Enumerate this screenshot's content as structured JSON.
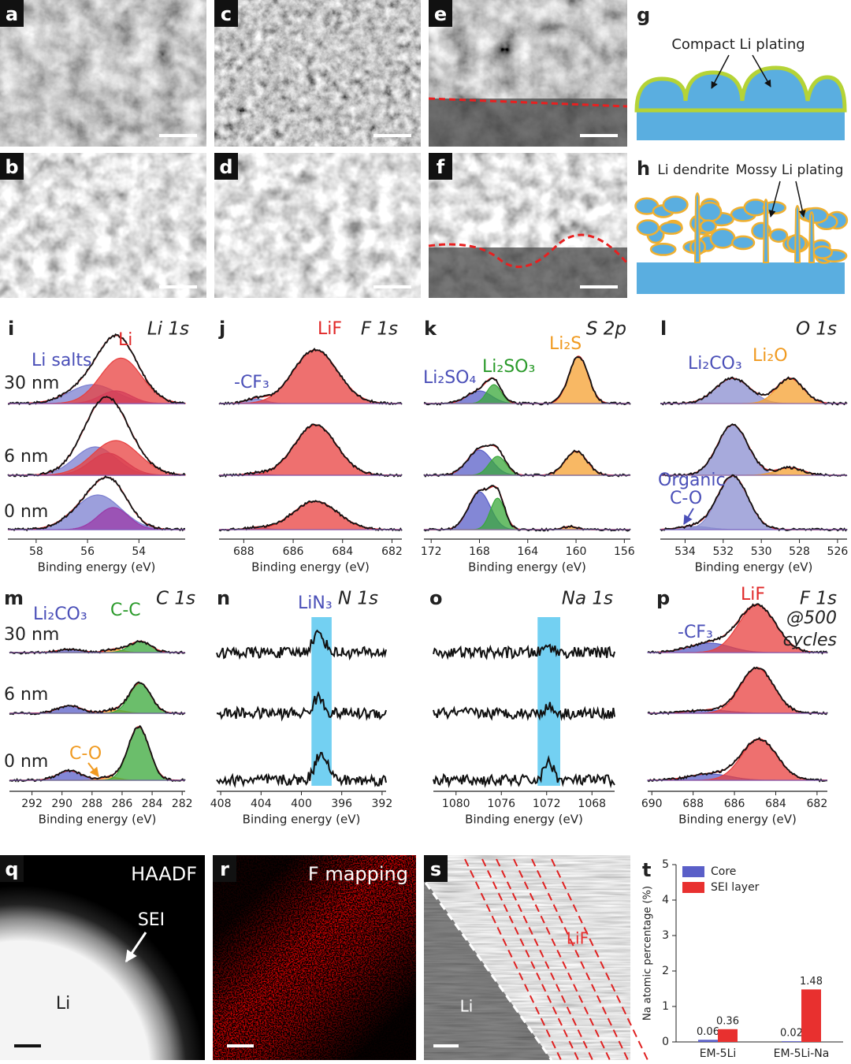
{
  "sem": [
    {
      "letter": "a"
    },
    {
      "letter": "b"
    },
    {
      "letter": "c"
    },
    {
      "letter": "d"
    },
    {
      "letter": "e"
    },
    {
      "letter": "f"
    }
  ],
  "schematics": [
    {
      "letter": "g",
      "labels": [
        "Compact Li plating"
      ]
    },
    {
      "letter": "h",
      "labels": [
        "Li dendrite",
        "Mossy Li plating"
      ]
    }
  ],
  "xps": [
    {
      "letter": "i",
      "title": "Li 1s",
      "xlim": [
        59.1,
        52.2
      ],
      "xticks": [
        58,
        56,
        54
      ],
      "xlabel": "Binding energy (eV)",
      "depths": [
        "30 nm",
        "6 nm",
        "0 nm"
      ],
      "labels": [
        {
          "text": "Li salts",
          "color": "#4a4fb8"
        },
        {
          "text": "Li",
          "color": "#e02828"
        }
      ],
      "rows": [
        [
          [
            55.8,
            0.3,
            0.9,
            "#7b7fd0"
          ],
          [
            54.9,
            0.2,
            0.6,
            "#9b3aa8"
          ],
          [
            54.7,
            0.72,
            0.8,
            "#e8403f"
          ]
        ],
        [
          [
            55.7,
            0.45,
            0.8,
            "#7b7fd0"
          ],
          [
            55.2,
            0.35,
            0.7,
            "#b03a80"
          ],
          [
            54.9,
            0.55,
            0.9,
            "#e8403f"
          ]
        ],
        [
          [
            55.6,
            0.55,
            0.9,
            "#7b7fd0"
          ],
          [
            55.0,
            0.35,
            0.6,
            "#9b3aa8"
          ]
        ]
      ]
    },
    {
      "letter": "j",
      "title": "F 1s",
      "xlim": [
        689,
        681.6
      ],
      "xticks": [
        688,
        686,
        684,
        682
      ],
      "xlabel": "Binding energy (eV)",
      "labels": [
        {
          "text": "LiF",
          "color": "#e02828"
        },
        {
          "text": "-CF₃",
          "color": "#4a4fb8"
        }
      ],
      "rows": [
        [
          [
            687.5,
            0.07,
            0.4,
            "#7b7fd0"
          ],
          [
            685.1,
            0.85,
            0.9,
            "#e8403f"
          ]
        ],
        [
          [
            687.5,
            0.03,
            0.4,
            "#7b7fd0"
          ],
          [
            685.1,
            0.8,
            0.85,
            "#e8403f"
          ]
        ],
        [
          [
            687.5,
            0.03,
            0.4,
            "#7b7fd0"
          ],
          [
            685.1,
            0.45,
            0.9,
            "#e8403f"
          ]
        ]
      ]
    },
    {
      "letter": "k",
      "title": "S 2p",
      "xlim": [
        172.6,
        155.5
      ],
      "xticks": [
        172,
        168,
        164,
        160,
        156
      ],
      "xlabel": "Binding energy (eV)",
      "labels": [
        {
          "text": "Li₂SO₄",
          "color": "#4a4fb8"
        },
        {
          "text": "Li₂SO₃",
          "color": "#2a9a2a"
        },
        {
          "text": "Li₂S",
          "color": "#f09a20"
        }
      ],
      "rows": [
        [
          [
            168,
            0.2,
            1.0,
            "#5a5fc8"
          ],
          [
            166.8,
            0.3,
            0.6,
            "#3aa83a"
          ],
          [
            159.8,
            0.75,
            0.8,
            "#f5a030"
          ]
        ],
        [
          [
            168,
            0.4,
            1.0,
            "#5a5fc8"
          ],
          [
            166.5,
            0.3,
            0.7,
            "#3aa83a"
          ],
          [
            160,
            0.38,
            0.9,
            "#f5a030"
          ]
        ],
        [
          [
            168,
            0.6,
            0.9,
            "#5a5fc8"
          ],
          [
            166.5,
            0.5,
            0.6,
            "#3aa83a"
          ],
          [
            160.5,
            0.05,
            0.6,
            "#f5a030"
          ]
        ]
      ]
    },
    {
      "letter": "l",
      "title": "O 1s",
      "xlim": [
        535.3,
        525.5
      ],
      "xticks": [
        534,
        532,
        530,
        528,
        526
      ],
      "xlabel": "Binding energy (eV)",
      "labels": [
        {
          "text": "Li₂CO₃",
          "color": "#4a4fb8"
        },
        {
          "text": "Li₂O",
          "color": "#f09a20"
        },
        {
          "text": "Organic",
          "color": "#4a4fb8"
        },
        {
          "text": "C-O",
          "color": "#4a4fb8"
        }
      ],
      "rows": [
        [
          [
            531.5,
            0.4,
            0.9,
            "#8a8ed0"
          ],
          [
            528.5,
            0.4,
            0.7,
            "#f5a030"
          ]
        ],
        [
          [
            531.5,
            0.8,
            0.8,
            "#8a8ed0"
          ],
          [
            528.5,
            0.12,
            0.7,
            "#f5a030"
          ]
        ],
        [
          [
            533.5,
            0.05,
            0.8,
            "#8a8ed0"
          ],
          [
            531.5,
            0.85,
            0.8,
            "#8a8ed0"
          ]
        ]
      ]
    },
    {
      "letter": "m",
      "title": "C 1s",
      "xlim": [
        293.5,
        281.8
      ],
      "xticks": [
        292,
        290,
        288,
        286,
        284,
        282
      ],
      "xlabel": "Binding energy (eV)",
      "depths": [
        "30 nm",
        "6 nm",
        "0 nm"
      ],
      "labels": [
        {
          "text": "Li₂CO₃",
          "color": "#4a4fb8"
        },
        {
          "text": "C-C",
          "color": "#2a9a2a"
        },
        {
          "text": "C-O",
          "color": "#f09a20"
        }
      ],
      "rows": [
        [
          [
            289.5,
            0.05,
            0.8,
            "#5a5fc8"
          ],
          [
            286.5,
            0.05,
            0.6,
            "#f5a030"
          ],
          [
            284.8,
            0.18,
            0.7,
            "#3aa83a"
          ]
        ],
        [
          [
            289.5,
            0.12,
            0.8,
            "#5a5fc8"
          ],
          [
            286.5,
            0.05,
            0.7,
            "#f5a030"
          ],
          [
            284.8,
            0.48,
            0.7,
            "#3aa83a"
          ]
        ],
        [
          [
            289.5,
            0.15,
            0.8,
            "#5a5fc8"
          ],
          [
            286.8,
            0.05,
            0.6,
            "#f5a030"
          ],
          [
            284.9,
            0.85,
            0.7,
            "#3aa83a"
          ]
        ]
      ]
    },
    {
      "letter": "n",
      "title": "N 1s",
      "xlim": [
        408.4,
        391.6
      ],
      "xticks": [
        408,
        404,
        400,
        396,
        392
      ],
      "xlabel": "Binding energy (eV)",
      "band": [
        399,
        397
      ],
      "labels": [
        {
          "text": "LiN₃",
          "color": "#4a4fb8"
        }
      ],
      "rows": [
        [
          [
            398.3,
            0.3,
            0.6,
            null
          ]
        ],
        [
          [
            398.3,
            0.25,
            0.5,
            null
          ]
        ],
        [
          [
            398.0,
            0.45,
            0.6,
            null
          ]
        ]
      ]
    },
    {
      "letter": "o",
      "title": "Na 1s",
      "xlim": [
        1082,
        1066
      ],
      "xticks": [
        1080,
        1076,
        1072,
        1068
      ],
      "xlabel": "Binding energy (eV)",
      "band": [
        1072.8,
        1070.8
      ],
      "labels": [],
      "rows": [
        [
          [
            1071.8,
            0.1,
            0.4,
            null
          ]
        ],
        [
          [
            1071.8,
            0.1,
            0.4,
            null
          ]
        ],
        [
          [
            1071.8,
            0.3,
            0.4,
            null
          ]
        ]
      ]
    },
    {
      "letter": "p",
      "title": "F 1s",
      "xlim": [
        690.2,
        681.5
      ],
      "xticks": [
        690,
        688,
        686,
        684,
        682
      ],
      "xlabel": "Binding energy (eV)",
      "labels": [
        {
          "text": "LiF",
          "color": "#e02828"
        },
        {
          "text": "-CF₃",
          "color": "#4a4fb8"
        },
        {
          "text": "@500",
          "color": "#222"
        },
        {
          "text": "cycles",
          "color": "#222"
        }
      ],
      "rows": [
        [
          [
            687.2,
            0.15,
            1.0,
            "#5a5fc8"
          ],
          [
            684.9,
            0.75,
            0.9,
            "#e8403f"
          ]
        ],
        [
          [
            687.2,
            0.05,
            1.0,
            "#5a5fc8"
          ],
          [
            684.9,
            0.72,
            0.8,
            "#e8403f"
          ]
        ],
        [
          [
            687.2,
            0.1,
            1.0,
            "#5a5fc8"
          ],
          [
            684.8,
            0.65,
            0.85,
            "#e8403f"
          ]
        ]
      ]
    }
  ],
  "tem": [
    {
      "letter": "q",
      "labels": [
        "HAADF",
        "SEI",
        "Li"
      ]
    },
    {
      "letter": "r",
      "labels": [
        "F mapping"
      ]
    },
    {
      "letter": "s",
      "labels": [
        "Li",
        "LiF"
      ]
    }
  ],
  "chart_data": {
    "type": "bar",
    "panel_letter": "t",
    "ylabel": "Na atomic percentage (%)",
    "categories": [
      "EM-5Li",
      "EM-5Li-Na"
    ],
    "series": [
      {
        "name": "Core",
        "color": "#5a5fc8",
        "values": [
          0.06,
          0.02
        ]
      },
      {
        "name": "SEI layer",
        "color": "#e8302f",
        "values": [
          0.36,
          1.48
        ]
      }
    ],
    "ylim": [
      0,
      5
    ],
    "yticks": [
      0,
      1,
      2,
      3,
      4,
      5
    ],
    "legend": "upper left"
  }
}
